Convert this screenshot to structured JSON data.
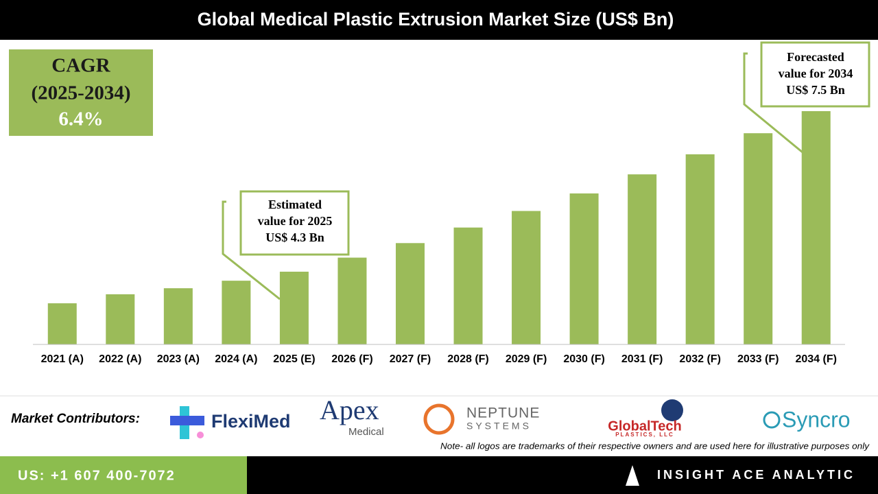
{
  "chart_data": {
    "type": "bar",
    "title": "Global Medical Plastic Extrusion Market Size (US$ Bn)",
    "categories": [
      "2021 (A)",
      "2022 (A)",
      "2023 (A)",
      "2024 (A)",
      "2025 (E)",
      "2026 (F)",
      "2027 (F)",
      "2028 (F)",
      "2029 (F)",
      "2030 (F)",
      "2031 (F)",
      "2032 (F)",
      "2033 (F)",
      "2034 (F)"
    ],
    "values": [
      3.67,
      3.85,
      3.97,
      4.12,
      4.3,
      4.58,
      4.87,
      5.18,
      5.51,
      5.86,
      6.24,
      6.64,
      7.06,
      7.5
    ],
    "color": "#9bbb59",
    "ylim": [
      2.85,
      7.5
    ],
    "cagr": [
      "CAGR",
      "(2025-2034)",
      "6.4%"
    ],
    "annotations": [
      {
        "lines": [
          "Estimated",
          "value for 2025",
          "US$ 4.3 Bn"
        ]
      },
      {
        "lines": [
          "Forecasted",
          "value for 2034",
          "US$ 7.5 Bn"
        ]
      }
    ]
  },
  "footer": {
    "contributors_label": "Market Contributors:",
    "logos": [
      "FlexiMed",
      "Apex",
      "Medical",
      "NEPTUNE",
      "SYSTEMS",
      "GlobalTech",
      "PLASTICS, LLC",
      "Syncro"
    ],
    "note": "Note- all logos are trademarks of their respective owners and are used here for illustrative purposes only",
    "phone": "US: +1 607 400-7072",
    "brand": "INSIGHT ACE ANALYTIC"
  }
}
